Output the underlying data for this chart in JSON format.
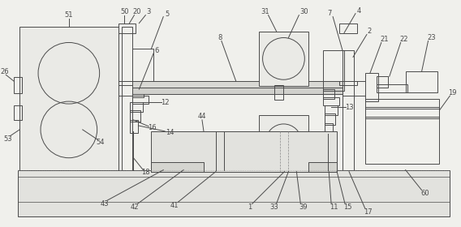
{
  "bg_color": "#f0f0ec",
  "line_color": "#4a4a4a",
  "lw": 0.7,
  "fig_w": 5.68,
  "fig_h": 2.8
}
